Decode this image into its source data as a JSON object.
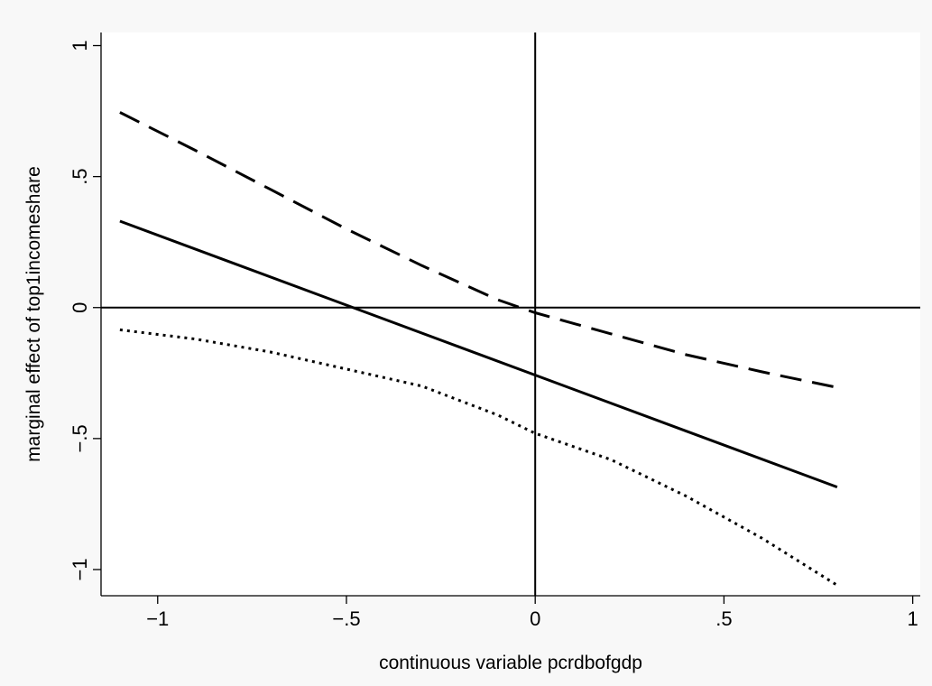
{
  "chart_data": {
    "type": "line",
    "xlabel": "continuous variable pcrdbofgdp",
    "ylabel": "marginal effect of top1incomeshare",
    "xlim": [
      -1.15,
      1.02
    ],
    "ylim": [
      -1.1,
      1.05
    ],
    "x_ticks": [
      {
        "value": -1,
        "label": "−1"
      },
      {
        "value": -0.5,
        "label": "−.5"
      },
      {
        "value": 0,
        "label": "0"
      },
      {
        "value": 0.5,
        "label": ".5"
      },
      {
        "value": 1,
        "label": "1"
      }
    ],
    "y_ticks": [
      {
        "value": -1,
        "label": "−1"
      },
      {
        "value": -0.5,
        "label": "−.5"
      },
      {
        "value": 0,
        "label": "0"
      },
      {
        "value": 0.5,
        "label": ".5"
      },
      {
        "value": 1,
        "label": "1"
      }
    ],
    "reference_lines": {
      "x": 0,
      "y": 0
    },
    "grid": false,
    "legend": "none",
    "series": [
      {
        "style": "solid",
        "x": [
          -1.1,
          0.8
        ],
        "y": [
          0.33,
          -0.685
        ]
      },
      {
        "style": "dashed",
        "x": [
          -1.1,
          -0.9,
          -0.7,
          -0.5,
          -0.3,
          -0.1,
          0.0,
          0.2,
          0.4,
          0.6,
          0.8
        ],
        "y": [
          0.745,
          0.6,
          0.45,
          0.3,
          0.16,
          0.03,
          -0.02,
          -0.1,
          -0.18,
          -0.245,
          -0.305
        ]
      },
      {
        "style": "dotted",
        "x": [
          -1.1,
          -0.9,
          -0.7,
          -0.5,
          -0.3,
          -0.1,
          0.0,
          0.2,
          0.4,
          0.6,
          0.8
        ],
        "y": [
          -0.085,
          -0.12,
          -0.17,
          -0.235,
          -0.3,
          -0.41,
          -0.48,
          -0.58,
          -0.72,
          -0.88,
          -1.06
        ]
      }
    ]
  }
}
